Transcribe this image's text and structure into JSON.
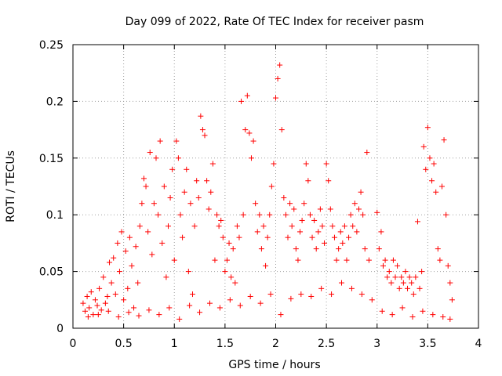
{
  "chart_data": {
    "type": "scatter",
    "title": "Day 099 of 2022, Rate Of TEC Index for receiver pasm",
    "xlabel": "GPS time / hours",
    "ylabel": "ROTI / TECUs",
    "xlim": [
      0,
      4
    ],
    "ylim": [
      0,
      0.25
    ],
    "x_ticks": [
      0,
      0.5,
      1,
      1.5,
      2,
      2.5,
      3,
      3.5,
      4
    ],
    "x_tick_labels": [
      "0",
      "0.5",
      "1",
      "1.5",
      "2",
      "2.5",
      "3",
      "3.5",
      "4"
    ],
    "y_ticks": [
      0,
      0.05,
      0.1,
      0.15,
      0.2,
      0.25
    ],
    "y_tick_labels": [
      "0",
      "0.05",
      "0.1",
      "0.15",
      "0.2",
      "0.25"
    ],
    "grid": true,
    "marker": "+",
    "marker_color": "#ff0000",
    "series": [
      {
        "name": "ROTI",
        "points": [
          [
            0.1,
            0.022
          ],
          [
            0.12,
            0.015
          ],
          [
            0.14,
            0.028
          ],
          [
            0.16,
            0.018
          ],
          [
            0.18,
            0.032
          ],
          [
            0.2,
            0.012
          ],
          [
            0.22,
            0.025
          ],
          [
            0.24,
            0.02
          ],
          [
            0.26,
            0.035
          ],
          [
            0.28,
            0.016
          ],
          [
            0.3,
            0.045
          ],
          [
            0.32,
            0.022
          ],
          [
            0.34,
            0.028
          ],
          [
            0.36,
            0.058
          ],
          [
            0.38,
            0.04
          ],
          [
            0.4,
            0.062
          ],
          [
            0.42,
            0.03
          ],
          [
            0.44,
            0.075
          ],
          [
            0.46,
            0.05
          ],
          [
            0.48,
            0.085
          ],
          [
            0.5,
            0.025
          ],
          [
            0.52,
            0.068
          ],
          [
            0.54,
            0.035
          ],
          [
            0.56,
            0.08
          ],
          [
            0.58,
            0.055
          ],
          [
            0.6,
            0.018
          ],
          [
            0.62,
            0.072
          ],
          [
            0.64,
            0.04
          ],
          [
            0.66,
            0.09
          ],
          [
            0.68,
            0.11
          ],
          [
            0.7,
            0.132
          ],
          [
            0.72,
            0.125
          ],
          [
            0.74,
            0.085
          ],
          [
            0.76,
            0.155
          ],
          [
            0.78,
            0.065
          ],
          [
            0.8,
            0.11
          ],
          [
            0.82,
            0.15
          ],
          [
            0.84,
            0.1
          ],
          [
            0.86,
            0.165
          ],
          [
            0.88,
            0.075
          ],
          [
            0.9,
            0.125
          ],
          [
            0.92,
            0.045
          ],
          [
            0.94,
            0.09
          ],
          [
            0.96,
            0.115
          ],
          [
            0.98,
            0.14
          ],
          [
            1.0,
            0.06
          ],
          [
            1.02,
            0.165
          ],
          [
            1.04,
            0.15
          ],
          [
            1.06,
            0.1
          ],
          [
            1.08,
            0.08
          ],
          [
            1.1,
            0.12
          ],
          [
            1.12,
            0.14
          ],
          [
            1.14,
            0.05
          ],
          [
            1.16,
            0.11
          ],
          [
            1.18,
            0.03
          ],
          [
            1.2,
            0.09
          ],
          [
            1.22,
            0.13
          ],
          [
            1.24,
            0.115
          ],
          [
            1.26,
            0.187
          ],
          [
            1.28,
            0.175
          ],
          [
            1.3,
            0.17
          ],
          [
            1.32,
            0.13
          ],
          [
            1.34,
            0.105
          ],
          [
            1.36,
            0.12
          ],
          [
            1.38,
            0.145
          ],
          [
            1.4,
            0.06
          ],
          [
            1.42,
            0.1
          ],
          [
            1.44,
            0.09
          ],
          [
            1.46,
            0.095
          ],
          [
            1.48,
            0.08
          ],
          [
            1.5,
            0.05
          ],
          [
            1.52,
            0.06
          ],
          [
            1.54,
            0.075
          ],
          [
            1.56,
            0.045
          ],
          [
            1.58,
            0.07
          ],
          [
            1.6,
            0.04
          ],
          [
            1.62,
            0.09
          ],
          [
            1.64,
            0.08
          ],
          [
            1.66,
            0.2
          ],
          [
            1.68,
            0.1
          ],
          [
            1.7,
            0.175
          ],
          [
            1.72,
            0.205
          ],
          [
            1.74,
            0.172
          ],
          [
            1.76,
            0.15
          ],
          [
            1.78,
            0.165
          ],
          [
            1.8,
            0.11
          ],
          [
            1.82,
            0.085
          ],
          [
            1.84,
            0.1
          ],
          [
            1.86,
            0.07
          ],
          [
            1.88,
            0.09
          ],
          [
            1.9,
            0.055
          ],
          [
            1.92,
            0.08
          ],
          [
            1.94,
            0.1
          ],
          [
            1.96,
            0.125
          ],
          [
            1.98,
            0.145
          ],
          [
            2.0,
            0.203
          ],
          [
            2.02,
            0.22
          ],
          [
            2.04,
            0.232
          ],
          [
            2.06,
            0.175
          ],
          [
            2.08,
            0.115
          ],
          [
            2.1,
            0.1
          ],
          [
            2.12,
            0.08
          ],
          [
            2.14,
            0.11
          ],
          [
            2.16,
            0.09
          ],
          [
            2.18,
            0.105
          ],
          [
            2.2,
            0.07
          ],
          [
            2.22,
            0.06
          ],
          [
            2.24,
            0.085
          ],
          [
            2.26,
            0.095
          ],
          [
            2.28,
            0.11
          ],
          [
            2.3,
            0.145
          ],
          [
            2.32,
            0.13
          ],
          [
            2.34,
            0.1
          ],
          [
            2.36,
            0.08
          ],
          [
            2.38,
            0.095
          ],
          [
            2.4,
            0.07
          ],
          [
            2.42,
            0.085
          ],
          [
            2.44,
            0.105
          ],
          [
            2.46,
            0.09
          ],
          [
            2.48,
            0.075
          ],
          [
            2.5,
            0.145
          ],
          [
            2.52,
            0.13
          ],
          [
            2.54,
            0.105
          ],
          [
            2.56,
            0.09
          ],
          [
            2.58,
            0.08
          ],
          [
            2.6,
            0.06
          ],
          [
            2.62,
            0.07
          ],
          [
            2.64,
            0.085
          ],
          [
            2.66,
            0.075
          ],
          [
            2.68,
            0.09
          ],
          [
            2.7,
            0.06
          ],
          [
            2.72,
            0.08
          ],
          [
            2.74,
            0.1
          ],
          [
            2.76,
            0.09
          ],
          [
            2.78,
            0.11
          ],
          [
            2.8,
            0.085
          ],
          [
            2.82,
            0.105
          ],
          [
            2.84,
            0.12
          ],
          [
            2.86,
            0.1
          ],
          [
            2.88,
            0.07
          ],
          [
            2.9,
            0.155
          ],
          [
            2.92,
            0.06
          ],
          [
            3.0,
            0.102
          ],
          [
            3.02,
            0.07
          ],
          [
            3.04,
            0.085
          ],
          [
            3.06,
            0.055
          ],
          [
            3.08,
            0.06
          ],
          [
            3.1,
            0.045
          ],
          [
            3.12,
            0.05
          ],
          [
            3.14,
            0.04
          ],
          [
            3.16,
            0.06
          ],
          [
            3.18,
            0.045
          ],
          [
            3.2,
            0.055
          ],
          [
            3.22,
            0.035
          ],
          [
            3.24,
            0.045
          ],
          [
            3.26,
            0.04
          ],
          [
            3.28,
            0.05
          ],
          [
            3.3,
            0.035
          ],
          [
            3.32,
            0.045
          ],
          [
            3.34,
            0.04
          ],
          [
            3.36,
            0.03
          ],
          [
            3.38,
            0.045
          ],
          [
            3.4,
            0.094
          ],
          [
            3.42,
            0.035
          ],
          [
            3.44,
            0.05
          ],
          [
            3.46,
            0.16
          ],
          [
            3.48,
            0.14
          ],
          [
            3.5,
            0.177
          ],
          [
            3.52,
            0.15
          ],
          [
            3.54,
            0.13
          ],
          [
            3.56,
            0.145
          ],
          [
            3.58,
            0.12
          ],
          [
            3.6,
            0.07
          ],
          [
            3.62,
            0.06
          ],
          [
            3.64,
            0.125
          ],
          [
            3.66,
            0.166
          ],
          [
            3.68,
            0.1
          ],
          [
            3.7,
            0.055
          ],
          [
            3.72,
            0.04
          ],
          [
            3.74,
            0.025
          ],
          [
            0.15,
            0.01
          ],
          [
            0.25,
            0.012
          ],
          [
            0.35,
            0.015
          ],
          [
            0.45,
            0.01
          ],
          [
            0.55,
            0.014
          ],
          [
            0.65,
            0.011
          ],
          [
            0.75,
            0.016
          ],
          [
            0.85,
            0.012
          ],
          [
            0.95,
            0.018
          ],
          [
            1.05,
            0.008
          ],
          [
            1.15,
            0.02
          ],
          [
            1.25,
            0.014
          ],
          [
            1.35,
            0.022
          ],
          [
            1.45,
            0.018
          ],
          [
            1.55,
            0.025
          ],
          [
            1.65,
            0.02
          ],
          [
            1.75,
            0.028
          ],
          [
            1.85,
            0.022
          ],
          [
            1.95,
            0.03
          ],
          [
            2.05,
            0.012
          ],
          [
            2.15,
            0.026
          ],
          [
            2.25,
            0.03
          ],
          [
            2.35,
            0.028
          ],
          [
            2.45,
            0.035
          ],
          [
            2.55,
            0.03
          ],
          [
            2.65,
            0.04
          ],
          [
            2.75,
            0.035
          ],
          [
            2.85,
            0.03
          ],
          [
            2.95,
            0.025
          ],
          [
            3.05,
            0.015
          ],
          [
            3.15,
            0.012
          ],
          [
            3.25,
            0.018
          ],
          [
            3.35,
            0.01
          ],
          [
            3.45,
            0.015
          ],
          [
            3.55,
            0.012
          ],
          [
            3.65,
            0.01
          ],
          [
            3.72,
            0.008
          ]
        ]
      }
    ]
  }
}
